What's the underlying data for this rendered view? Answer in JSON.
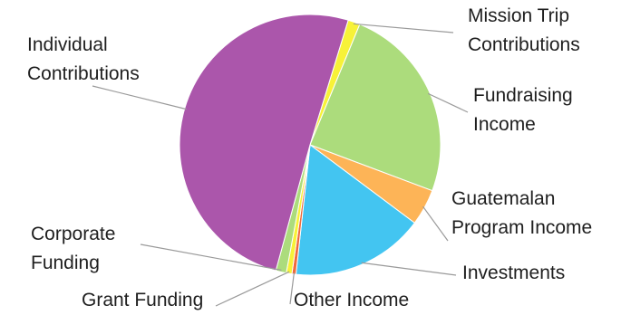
{
  "chart_data": {
    "type": "pie",
    "title": "",
    "start": "12 o'clock",
    "direction": "clockwise",
    "legend": "none (callout labels)",
    "slices": [
      {
        "label": "Mission Trip Contributions",
        "label_lines": [
          "Mission Trip",
          "Contributions"
        ],
        "value": 1.5,
        "color": "#f7f238"
      },
      {
        "label": "Fundraising Income",
        "label_lines": [
          "Fundraising",
          "Income"
        ],
        "value": 24.5,
        "color": "#acdc7c"
      },
      {
        "label": "Guatemalan Program Income",
        "label_lines": [
          "Guatemalan",
          "Program Income"
        ],
        "value": 4.5,
        "color": "#fdb457"
      },
      {
        "label": "Investments",
        "label_lines": [
          "Investments"
        ],
        "value": 16.5,
        "color": "#43c5f1"
      },
      {
        "label": "Other Income",
        "label_lines": [
          "Other Income"
        ],
        "value": 0.5,
        "color": "#ef6a3c"
      },
      {
        "label": "Grant Funding",
        "label_lines": [
          "Grant Funding"
        ],
        "value": 0.7,
        "color": "#f7f238"
      },
      {
        "label": "Corporate Funding",
        "label_lines": [
          "Corporate",
          "Funding"
        ],
        "value": 1.3,
        "color": "#acdc7c"
      },
      {
        "label": "Individual Contributions",
        "label_lines": [
          "Individual",
          "Contributions"
        ],
        "value": 50.5,
        "color": "#ab56ab"
      }
    ]
  }
}
